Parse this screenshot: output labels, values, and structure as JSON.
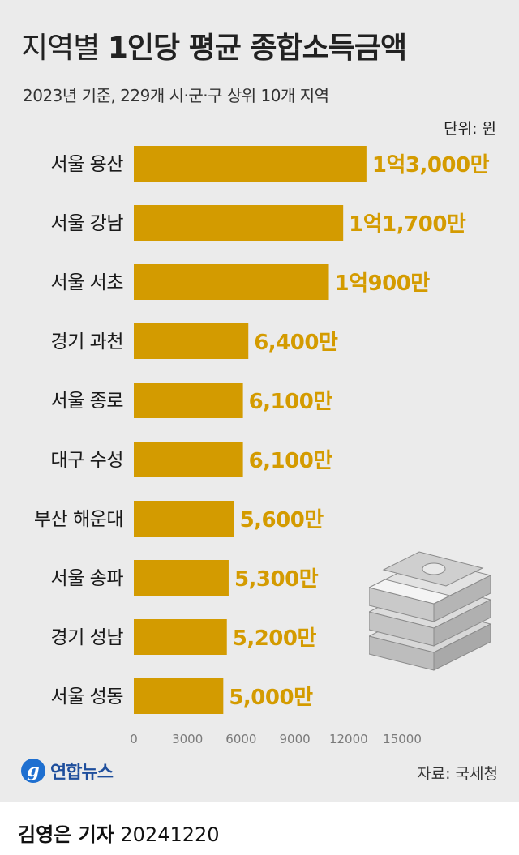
{
  "title_light": "지역별",
  "title_bold": "1인당 평균 종합소득금액",
  "subtitle": "2023년 기준, 229개 시·군·구 상위 10개 지역",
  "unit": "단위: 원",
  "source": "자료: 국세청",
  "logo_text": "연합뉴스",
  "credit_name": "김영은 기자",
  "credit_date": "20241220",
  "colors": {
    "bar": "#d39b00",
    "value_label": "#d49b00",
    "background": "#ebebeb"
  },
  "chart_data": {
    "type": "bar",
    "orientation": "horizontal",
    "categories": [
      "서울 용산",
      "서울 강남",
      "서울 서초",
      "경기 과천",
      "서울 종로",
      "대구 수성",
      "부산 해운대",
      "서울 송파",
      "경기 성남",
      "서울 성동"
    ],
    "values": [
      13000,
      11700,
      10900,
      6400,
      6100,
      6100,
      5600,
      5300,
      5200,
      5000
    ],
    "value_labels": [
      "1억3,000만",
      "1억1,700만",
      "1억900만",
      "6,400만",
      "6,100만",
      "6,100만",
      "5,600만",
      "5,300만",
      "5,200만",
      "5,000만"
    ],
    "xlim": [
      0,
      15000
    ],
    "xticks": [
      "0",
      "3000",
      "6000",
      "9000",
      "12000",
      "15000"
    ],
    "grid": false,
    "legend": "none"
  }
}
